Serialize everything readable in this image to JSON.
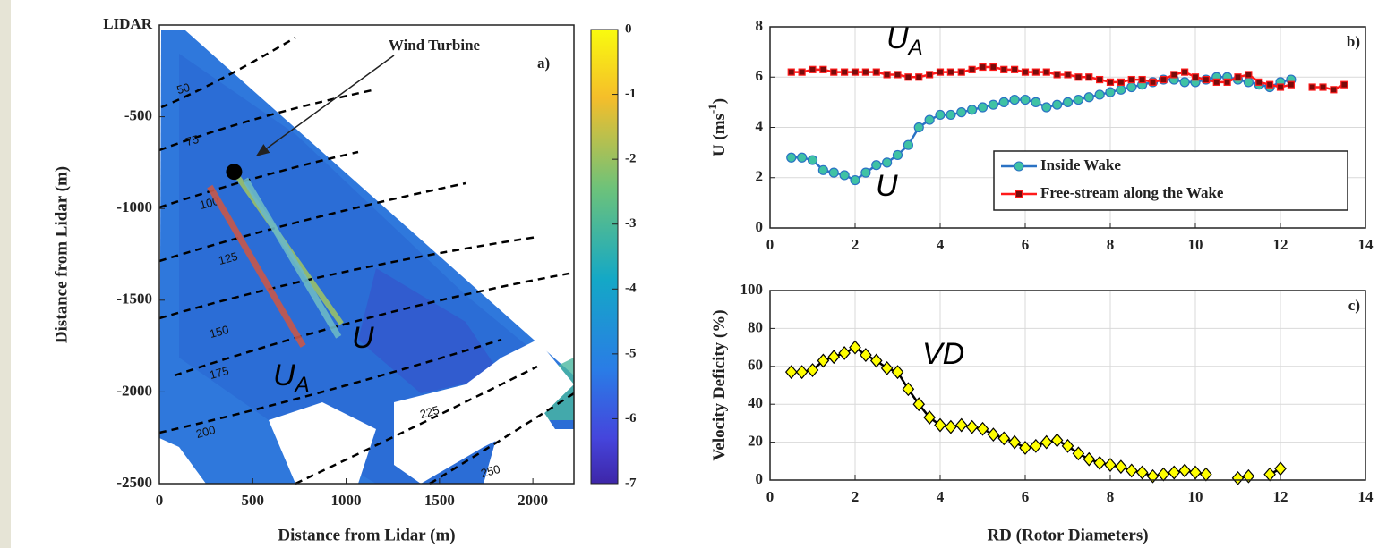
{
  "chart_data": [
    {
      "type": "heatmap",
      "xlabel": "Distance from Lidar (m)",
      "ylabel": "Distance from Lidar (m)",
      "xlim": [
        0,
        2220
      ],
      "ylim": [
        -2500,
        0
      ],
      "xticks": [
        0,
        500,
        1000,
        1500,
        2000
      ],
      "yticks": [
        {
          "value": 0,
          "label": "LIDAR"
        },
        -500,
        -1000,
        -1500,
        -2000,
        -2500
      ],
      "colorbar": {
        "lim": [
          -7,
          0
        ],
        "ticks": [
          0,
          -1,
          -2,
          -3,
          -4,
          -5,
          -6,
          -7
        ]
      },
      "contours": [
        50,
        75,
        100,
        125,
        150,
        175,
        200,
        225,
        250
      ],
      "annotation": "Wind Turbine",
      "panel_label": "a)",
      "turbine": {
        "x": 400,
        "y": -800
      },
      "lines": [
        {
          "label": "U",
          "sub": "A",
          "color": "#c8574a",
          "x": [
            270,
            770
          ],
          "y": [
            -880,
            -1750
          ]
        },
        {
          "label": "U",
          "color": "#6cb9c6",
          "x": [
            460,
            960
          ],
          "y": [
            -840,
            -1700
          ]
        }
      ]
    },
    {
      "type": "line",
      "ylabel": "U (ms",
      "ylabel_sup": "-1",
      "ylabel_end": ")",
      "xlim": [
        0,
        14
      ],
      "ylim": [
        0,
        8
      ],
      "xticks": [
        0,
        2,
        4,
        6,
        8,
        10,
        12,
        14
      ],
      "yticks": [
        0,
        2,
        4,
        6,
        8
      ],
      "grid": true,
      "legend": "lower right",
      "panel_label": "b)",
      "annotations": [
        {
          "text": "U",
          "sub": "A"
        },
        {
          "text": "U"
        }
      ],
      "series": [
        {
          "name": "Inside Wake",
          "color": "#2a72c4",
          "marker": "circle",
          "marker_color": "#3fc2a4",
          "x": [
            0.5,
            0.75,
            1,
            1.25,
            1.5,
            1.75,
            2,
            2.25,
            2.5,
            2.75,
            3,
            3.25,
            3.5,
            3.75,
            4,
            4.25,
            4.5,
            4.75,
            5,
            5.25,
            5.5,
            5.75,
            6,
            6.25,
            6.5,
            6.75,
            7,
            7.25,
            7.5,
            7.75,
            8,
            8.25,
            8.5,
            8.75,
            9,
            9.25,
            9.5,
            9.75,
            10,
            10.25,
            10.5,
            10.75,
            11,
            11.25,
            11.5,
            11.75,
            12,
            12.25
          ],
          "values": [
            2.8,
            2.8,
            2.7,
            2.3,
            2.2,
            2.1,
            1.9,
            2.2,
            2.5,
            2.6,
            2.9,
            3.3,
            4.0,
            4.3,
            4.5,
            4.5,
            4.6,
            4.7,
            4.8,
            4.9,
            5.0,
            5.1,
            5.1,
            5.0,
            4.8,
            4.9,
            5.0,
            5.1,
            5.2,
            5.3,
            5.4,
            5.5,
            5.6,
            5.7,
            5.8,
            5.9,
            5.9,
            5.8,
            5.8,
            5.9,
            6.0,
            6.0,
            5.9,
            5.8,
            5.7,
            5.6,
            5.8,
            5.9
          ]
        },
        {
          "name": "Free-stream along the Wake",
          "color": "#ff1a1a",
          "marker": "square",
          "marker_color": "#7a0a0a",
          "x": [
            0.5,
            0.75,
            1,
            1.25,
            1.5,
            1.75,
            2,
            2.25,
            2.5,
            2.75,
            3,
            3.25,
            3.5,
            3.75,
            4,
            4.25,
            4.5,
            4.75,
            5,
            5.25,
            5.5,
            5.75,
            6,
            6.25,
            6.5,
            6.75,
            7,
            7.25,
            7.5,
            7.75,
            8,
            8.25,
            8.5,
            8.75,
            9,
            9.25,
            9.5,
            9.75,
            10,
            10.25,
            10.5,
            10.75,
            11,
            11.25,
            11.5,
            11.75,
            12,
            12.25,
            12.5,
            12.75,
            13,
            13.25,
            13.5
          ],
          "values": [
            6.2,
            6.2,
            6.3,
            6.3,
            6.2,
            6.2,
            6.2,
            6.2,
            6.2,
            6.1,
            6.1,
            6.0,
            6.0,
            6.1,
            6.2,
            6.2,
            6.2,
            6.3,
            6.4,
            6.4,
            6.3,
            6.3,
            6.2,
            6.2,
            6.2,
            6.1,
            6.1,
            6.0,
            6.0,
            5.9,
            5.8,
            5.8,
            5.9,
            5.9,
            5.8,
            5.9,
            6.1,
            6.2,
            6.0,
            5.9,
            5.8,
            5.8,
            6.0,
            6.1,
            5.8,
            5.7,
            5.6,
            5.7,
            null,
            5.6,
            5.6,
            5.5,
            5.7
          ]
        }
      ]
    },
    {
      "type": "line",
      "xlabel": "RD (Rotor Diameters)",
      "ylabel": "Velocity Deficity (%)",
      "xlim": [
        0,
        14
      ],
      "ylim": [
        0,
        100
      ],
      "xticks": [
        0,
        2,
        4,
        6,
        8,
        10,
        12,
        14
      ],
      "yticks": [
        0,
        20,
        40,
        60,
        80,
        100
      ],
      "grid": true,
      "panel_label": "c)",
      "annotations": [
        {
          "text": "VD"
        }
      ],
      "series": [
        {
          "color": "#000000",
          "marker": "diamond",
          "marker_color": "#ffff00",
          "x": [
            0.5,
            0.75,
            1,
            1.25,
            1.5,
            1.75,
            2,
            2.25,
            2.5,
            2.75,
            3,
            3.25,
            3.5,
            3.75,
            4,
            4.25,
            4.5,
            4.75,
            5,
            5.25,
            5.5,
            5.75,
            6,
            6.25,
            6.5,
            6.75,
            7,
            7.25,
            7.5,
            7.75,
            8,
            8.25,
            8.5,
            8.75,
            9,
            9.25,
            9.5,
            9.75,
            10,
            10.25,
            10.5,
            10.75,
            11,
            11.25,
            11.5,
            11.75,
            12
          ],
          "values": [
            57,
            57,
            58,
            63,
            65,
            67,
            70,
            66,
            63,
            59,
            57,
            48,
            40,
            33,
            29,
            28,
            29,
            28,
            27,
            24,
            22,
            20,
            17,
            18,
            20,
            21,
            18,
            14,
            11,
            9,
            8,
            7,
            5,
            4,
            2,
            3,
            4,
            5,
            4,
            3,
            null,
            null,
            1,
            2,
            null,
            3,
            6
          ]
        }
      ]
    }
  ]
}
